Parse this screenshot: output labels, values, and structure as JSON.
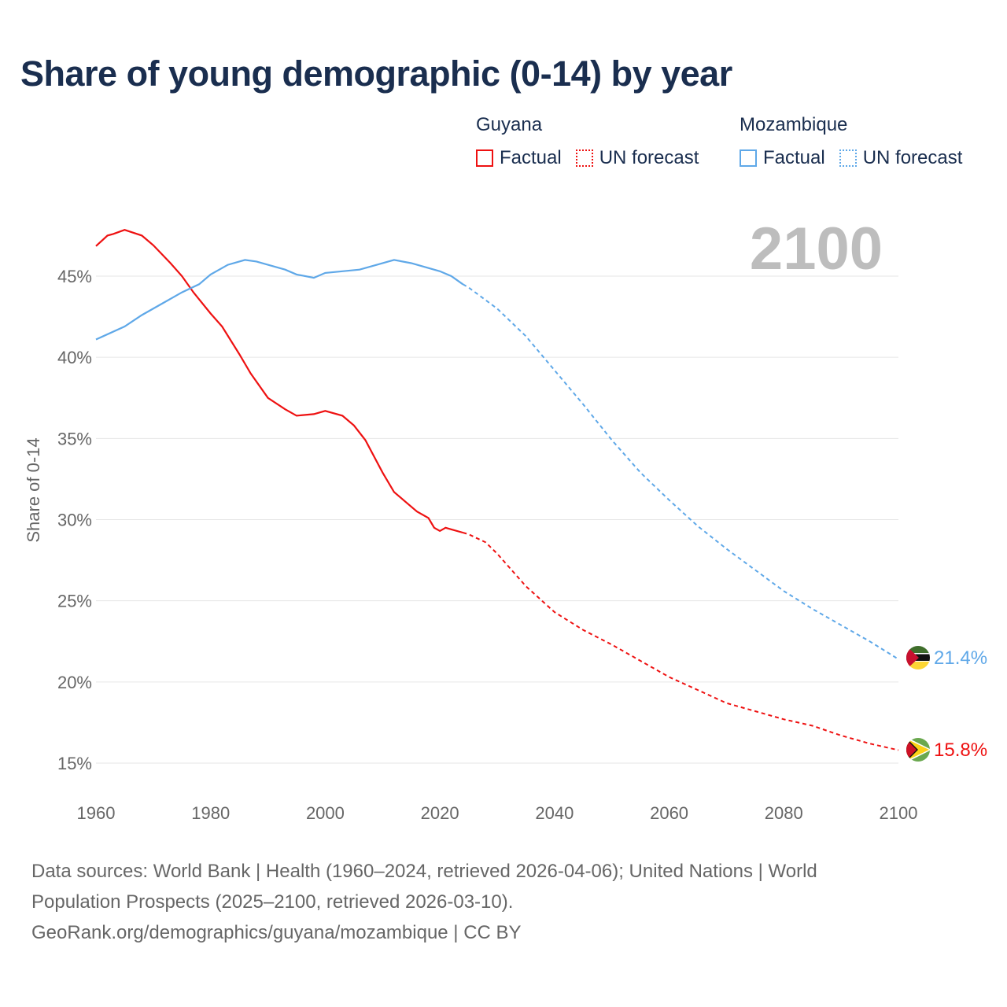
{
  "title": "Share of young demographic (0-14) by year",
  "legend": [
    {
      "group": "Guyana",
      "factual": "Factual",
      "forecast": "UN forecast",
      "color": "#ee1111"
    },
    {
      "group": "Mozambique",
      "factual": "Factual",
      "forecast": "UN forecast",
      "color": "#5fa8e8"
    }
  ],
  "footer": {
    "line1": "Data sources: World Bank | Health (1960–2024, retrieved 2026-04-06); United Nations | World",
    "line2": "Population Prospects (2025–2100, retrieved 2026-03-10).",
    "line3": "GeoRank.org/demographics/guyana/mozambique | CC BY"
  },
  "chart_data": {
    "type": "line",
    "title": "Share of young demographic (0-14) by year",
    "ylabel": "Share of 0-14",
    "xlabel": "",
    "year_label": "2100",
    "xlim": [
      1960,
      2100
    ],
    "ylim": [
      13.5,
      48.5
    ],
    "xticks": [
      1960,
      1980,
      2000,
      2020,
      2040,
      2060,
      2080,
      2100
    ],
    "yticks": [
      15,
      20,
      25,
      30,
      35,
      40,
      45
    ],
    "ytick_labels": [
      "15%",
      "20%",
      "25%",
      "30%",
      "35%",
      "40%",
      "45%"
    ],
    "grid": true,
    "series": [
      {
        "name": "Guyana",
        "color": "#ee1111",
        "end_label": "15.8%",
        "factual": [
          [
            1960,
            46.85
          ],
          [
            1962,
            47.5
          ],
          [
            1963,
            47.6
          ],
          [
            1965,
            47.85
          ],
          [
            1968,
            47.5
          ],
          [
            1970,
            46.9
          ],
          [
            1973,
            45.8
          ],
          [
            1975,
            45.0
          ],
          [
            1977,
            44.0
          ],
          [
            1980,
            42.7
          ],
          [
            1982,
            41.9
          ],
          [
            1985,
            40.2
          ],
          [
            1987,
            39.0
          ],
          [
            1990,
            37.5
          ],
          [
            1993,
            36.8
          ],
          [
            1995,
            36.4
          ],
          [
            1998,
            36.5
          ],
          [
            2000,
            36.7
          ],
          [
            2003,
            36.4
          ],
          [
            2005,
            35.8
          ],
          [
            2007,
            34.9
          ],
          [
            2010,
            32.9
          ],
          [
            2012,
            31.7
          ],
          [
            2014,
            31.1
          ],
          [
            2016,
            30.5
          ],
          [
            2018,
            30.1
          ],
          [
            2019,
            29.5
          ],
          [
            2020,
            29.3
          ],
          [
            2021,
            29.5
          ],
          [
            2022,
            29.4
          ],
          [
            2024,
            29.2
          ]
        ],
        "forecast": [
          [
            2024,
            29.2
          ],
          [
            2025,
            29.1
          ],
          [
            2028,
            28.6
          ],
          [
            2030,
            27.9
          ],
          [
            2035,
            25.9
          ],
          [
            2040,
            24.3
          ],
          [
            2045,
            23.2
          ],
          [
            2050,
            22.3
          ],
          [
            2055,
            21.3
          ],
          [
            2060,
            20.3
          ],
          [
            2065,
            19.5
          ],
          [
            2070,
            18.7
          ],
          [
            2075,
            18.2
          ],
          [
            2080,
            17.7
          ],
          [
            2085,
            17.3
          ],
          [
            2090,
            16.7
          ],
          [
            2095,
            16.2
          ],
          [
            2100,
            15.8
          ]
        ]
      },
      {
        "name": "Mozambique",
        "color": "#5fa8e8",
        "end_label": "21.4%",
        "factual": [
          [
            1960,
            41.1
          ],
          [
            1965,
            41.9
          ],
          [
            1968,
            42.6
          ],
          [
            1972,
            43.4
          ],
          [
            1975,
            44.0
          ],
          [
            1978,
            44.5
          ],
          [
            1980,
            45.1
          ],
          [
            1983,
            45.7
          ],
          [
            1986,
            46.0
          ],
          [
            1988,
            45.9
          ],
          [
            1990,
            45.7
          ],
          [
            1993,
            45.4
          ],
          [
            1995,
            45.1
          ],
          [
            1998,
            44.9
          ],
          [
            2000,
            45.2
          ],
          [
            2003,
            45.3
          ],
          [
            2006,
            45.4
          ],
          [
            2009,
            45.7
          ],
          [
            2011,
            45.9
          ],
          [
            2012,
            46.0
          ],
          [
            2015,
            45.8
          ],
          [
            2020,
            45.3
          ],
          [
            2022,
            45.0
          ],
          [
            2024,
            44.5
          ]
        ],
        "forecast": [
          [
            2024,
            44.5
          ],
          [
            2025,
            44.3
          ],
          [
            2030,
            43.0
          ],
          [
            2035,
            41.3
          ],
          [
            2040,
            39.2
          ],
          [
            2045,
            37.1
          ],
          [
            2050,
            34.9
          ],
          [
            2055,
            32.9
          ],
          [
            2060,
            31.2
          ],
          [
            2065,
            29.6
          ],
          [
            2070,
            28.2
          ],
          [
            2075,
            26.9
          ],
          [
            2080,
            25.6
          ],
          [
            2085,
            24.5
          ],
          [
            2090,
            23.5
          ],
          [
            2095,
            22.5
          ],
          [
            2100,
            21.4
          ]
        ]
      }
    ]
  }
}
